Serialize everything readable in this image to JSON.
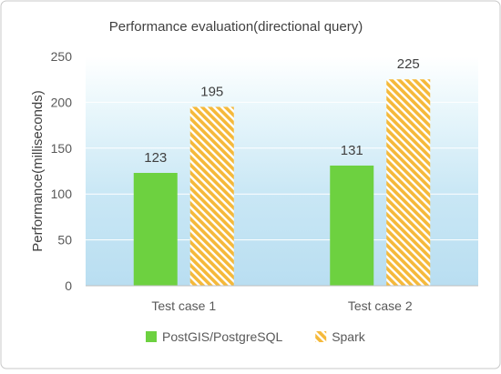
{
  "chart_data": {
    "type": "bar",
    "title": "Performance evaluation(directional query)",
    "xlabel": "",
    "ylabel": "Performance(milliseconds)",
    "categories": [
      "Test case 1",
      "Test case 2"
    ],
    "ylim": [
      0,
      250
    ],
    "yticks": [
      0,
      50,
      100,
      150,
      200,
      250
    ],
    "grid": true,
    "legend_position": "bottom",
    "data_labels": true,
    "series": [
      {
        "name": "PostGIS/PostgreSQL",
        "values": [
          123,
          131
        ],
        "color": "#6dd140",
        "fill": "solid"
      },
      {
        "name": "Spark",
        "values": [
          195,
          225
        ],
        "color": "#f5b93a",
        "fill": "diagonal-hatch"
      }
    ],
    "plot_background": "gradient light-blue"
  }
}
